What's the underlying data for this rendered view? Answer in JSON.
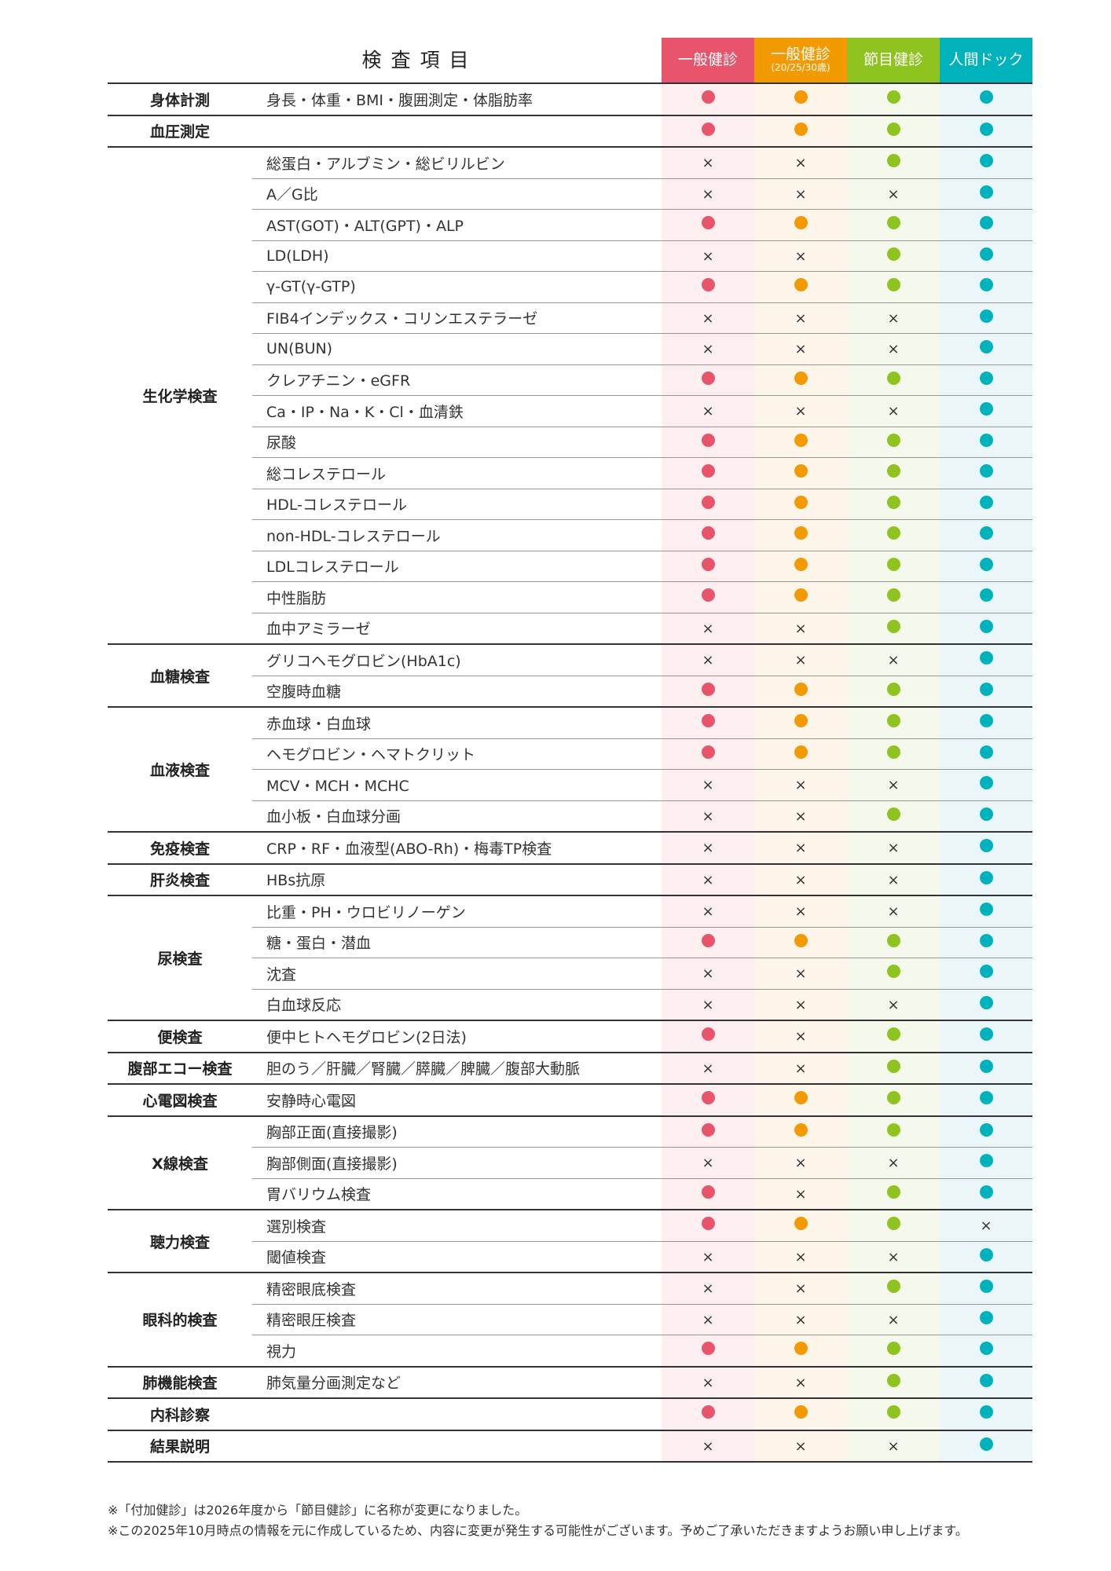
{
  "header": {
    "title": "検査項目",
    "columns": [
      {
        "label": "一般健診",
        "sub": "",
        "color": "#e8546b"
      },
      {
        "label": "一般健診",
        "sub": "(20/25/30歳)",
        "color": "#f39a00"
      },
      {
        "label": "節目健診",
        "sub": "",
        "color": "#8fc31f"
      },
      {
        "label": "人間ドック",
        "sub": "",
        "color": "#00b2bc"
      }
    ]
  },
  "legend": {
    "included": "circle",
    "excluded": "×"
  },
  "groups": [
    {
      "label": "身体計測",
      "items": [
        {
          "name": "身長・体重・BMI・腹囲測定・体脂肪率",
          "marks": [
            "o",
            "o",
            "o",
            "o"
          ]
        }
      ]
    },
    {
      "label": "血圧測定",
      "items": [
        {
          "name": "",
          "marks": [
            "o",
            "o",
            "o",
            "o"
          ]
        }
      ]
    },
    {
      "label": "生化学検査",
      "items": [
        {
          "name": "総蛋白・アルブミン・総ビリルビン",
          "marks": [
            "x",
            "x",
            "o",
            "o"
          ]
        },
        {
          "name": "A／G比",
          "marks": [
            "x",
            "x",
            "x",
            "o"
          ]
        },
        {
          "name": "AST(GOT)・ALT(GPT)・ALP",
          "marks": [
            "o",
            "o",
            "o",
            "o"
          ]
        },
        {
          "name": "LD(LDH)",
          "marks": [
            "x",
            "x",
            "o",
            "o"
          ]
        },
        {
          "name": "γ-GT(γ-GTP)",
          "marks": [
            "o",
            "o",
            "o",
            "o"
          ]
        },
        {
          "name": "FIB4インデックス・コリンエステラーゼ",
          "marks": [
            "x",
            "x",
            "x",
            "o"
          ]
        },
        {
          "name": "UN(BUN)",
          "marks": [
            "x",
            "x",
            "x",
            "o"
          ]
        },
        {
          "name": "クレアチニン・eGFR",
          "marks": [
            "o",
            "o",
            "o",
            "o"
          ]
        },
        {
          "name": "Ca・IP・Na・K・Cl・血清鉄",
          "marks": [
            "x",
            "x",
            "x",
            "o"
          ]
        },
        {
          "name": "尿酸",
          "marks": [
            "o",
            "o",
            "o",
            "o"
          ]
        },
        {
          "name": "総コレステロール",
          "marks": [
            "o",
            "o",
            "o",
            "o"
          ]
        },
        {
          "name": "HDL-コレステロール",
          "marks": [
            "o",
            "o",
            "o",
            "o"
          ]
        },
        {
          "name": "non-HDL-コレステロール",
          "marks": [
            "o",
            "o",
            "o",
            "o"
          ]
        },
        {
          "name": "LDLコレステロール",
          "marks": [
            "o",
            "o",
            "o",
            "o"
          ]
        },
        {
          "name": "中性脂肪",
          "marks": [
            "o",
            "o",
            "o",
            "o"
          ]
        },
        {
          "name": "血中アミラーゼ",
          "marks": [
            "x",
            "x",
            "o",
            "o"
          ]
        }
      ]
    },
    {
      "label": "血糖検査",
      "items": [
        {
          "name": "グリコヘモグロビン(HbA1c)",
          "marks": [
            "x",
            "x",
            "x",
            "o"
          ]
        },
        {
          "name": "空腹時血糖",
          "marks": [
            "o",
            "o",
            "o",
            "o"
          ]
        }
      ]
    },
    {
      "label": "血液検査",
      "items": [
        {
          "name": "赤血球・白血球",
          "marks": [
            "o",
            "o",
            "o",
            "o"
          ]
        },
        {
          "name": "ヘモグロビン・ヘマトクリット",
          "marks": [
            "o",
            "o",
            "o",
            "o"
          ]
        },
        {
          "name": "MCV・MCH・MCHC",
          "marks": [
            "x",
            "x",
            "x",
            "o"
          ]
        },
        {
          "name": "血小板・白血球分画",
          "marks": [
            "x",
            "x",
            "o",
            "o"
          ]
        }
      ]
    },
    {
      "label": "免疫検査",
      "items": [
        {
          "name": "CRP・RF・血液型(ABO-Rh)・梅毒TP検査",
          "marks": [
            "x",
            "x",
            "x",
            "o"
          ]
        }
      ]
    },
    {
      "label": "肝炎検査",
      "items": [
        {
          "name": "HBs抗原",
          "marks": [
            "x",
            "x",
            "x",
            "o"
          ]
        }
      ]
    },
    {
      "label": "尿検査",
      "items": [
        {
          "name": "比重・PH・ウロビリノーゲン",
          "marks": [
            "x",
            "x",
            "x",
            "o"
          ]
        },
        {
          "name": "糖・蛋白・潜血",
          "marks": [
            "o",
            "o",
            "o",
            "o"
          ]
        },
        {
          "name": "沈査",
          "marks": [
            "x",
            "x",
            "o",
            "o"
          ]
        },
        {
          "name": "白血球反応",
          "marks": [
            "x",
            "x",
            "x",
            "o"
          ]
        }
      ]
    },
    {
      "label": "便検査",
      "items": [
        {
          "name": "便中ヒトヘモグロビン(2日法)",
          "marks": [
            "o",
            "x",
            "o",
            "o"
          ]
        }
      ]
    },
    {
      "label": "腹部エコー検査",
      "items": [
        {
          "name": "胆のう／肝臓／腎臓／膵臓／脾臓／腹部大動脈",
          "marks": [
            "x",
            "x",
            "o",
            "o"
          ]
        }
      ]
    },
    {
      "label": "心電図検査",
      "items": [
        {
          "name": "安静時心電図",
          "marks": [
            "o",
            "o",
            "o",
            "o"
          ]
        }
      ]
    },
    {
      "label": "X線検査",
      "items": [
        {
          "name": "胸部正面(直接撮影)",
          "marks": [
            "o",
            "o",
            "o",
            "o"
          ]
        },
        {
          "name": "胸部側面(直接撮影)",
          "marks": [
            "x",
            "x",
            "x",
            "o"
          ]
        },
        {
          "name": "胃バリウム検査",
          "marks": [
            "o",
            "x",
            "o",
            "o"
          ]
        }
      ]
    },
    {
      "label": "聴力検査",
      "items": [
        {
          "name": "選別検査",
          "marks": [
            "o",
            "o",
            "o",
            "x"
          ]
        },
        {
          "name": "閾値検査",
          "marks": [
            "x",
            "x",
            "x",
            "o"
          ]
        }
      ]
    },
    {
      "label": "眼科的検査",
      "items": [
        {
          "name": "精密眼底検査",
          "marks": [
            "x",
            "x",
            "o",
            "o"
          ]
        },
        {
          "name": "精密眼圧検査",
          "marks": [
            "x",
            "x",
            "x",
            "o"
          ]
        },
        {
          "name": "視力",
          "marks": [
            "o",
            "o",
            "o",
            "o"
          ]
        }
      ]
    },
    {
      "label": "肺機能検査",
      "items": [
        {
          "name": "肺気量分画測定など",
          "marks": [
            "x",
            "x",
            "o",
            "o"
          ]
        }
      ]
    },
    {
      "label": "内科診察",
      "items": [
        {
          "name": "",
          "marks": [
            "o",
            "o",
            "o",
            "o"
          ]
        }
      ]
    },
    {
      "label": "結果説明",
      "items": [
        {
          "name": "",
          "marks": [
            "x",
            "x",
            "x",
            "o"
          ]
        }
      ]
    }
  ],
  "notes": [
    "※「付加健診」は2026年度から「節目健診」に名称が変更になりました。",
    "※この2025年10月時点の情報を元に作成しているため、内容に変更が発生する可能性がございます。予めご了承いただきますようお願い申し上げます。"
  ]
}
